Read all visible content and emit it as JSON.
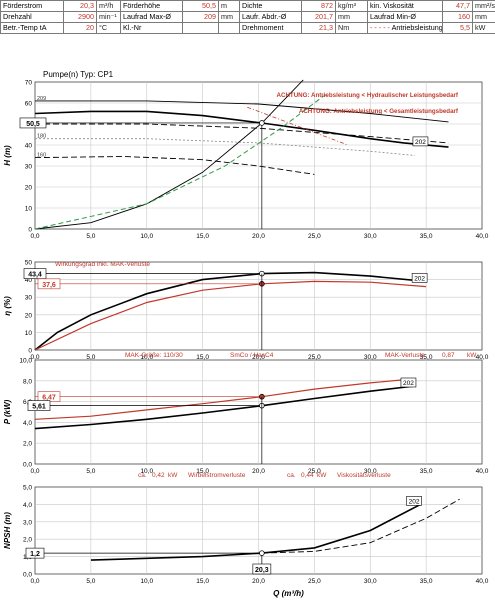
{
  "header": {
    "rows": [
      [
        {
          "label": "Förderstrom",
          "value": "20,3",
          "unit": "m³/h"
        },
        {
          "label": "Förderhöhe",
          "value": "50,5",
          "unit": "m"
        },
        {
          "label": "Dichte",
          "value": "872",
          "unit": "kg/m³"
        },
        {
          "label": "kin. Viskosität",
          "value": "47,7",
          "unit": "mm²/s"
        }
      ],
      [
        {
          "label": "Drehzahl",
          "value": "2900",
          "unit": "min⁻¹"
        },
        {
          "label": "Laufrad Max-Ø",
          "value": "209",
          "unit": "mm"
        },
        {
          "label": "Laufr. Abdr.-Ø",
          "value": "201,7",
          "unit": "mm"
        },
        {
          "label": "Laufrad Min-Ø",
          "value": "160",
          "unit": "mm"
        }
      ],
      [
        {
          "label": "Betr.-Temp tA",
          "value": "20",
          "unit": "°C"
        },
        {
          "label": "Kl.-Nr",
          "value": "",
          "unit": ""
        },
        {
          "label": "Drehmoment",
          "value": "21,3",
          "unit": "Nm"
        },
        {
          "label": "Antriebsleistung",
          "value": "5,5",
          "unit": "kW"
        }
      ]
    ],
    "legend_dashdot": "- - - - -"
  },
  "colors": {
    "red": "#c0392b",
    "green": "#2e9a48",
    "black": "#000000",
    "grid": "#c8c8c8",
    "gray": "#888888"
  },
  "chart_data": [
    {
      "type": "line",
      "title": "Pumpe(n) Typ:   CP1",
      "ylabel": "H (m)",
      "xlim": [
        0,
        40
      ],
      "ylim": [
        0,
        70
      ],
      "xticks": [
        "0,0",
        "5,0",
        "10,0",
        "15,0",
        "20,0",
        "25,0",
        "30,0",
        "35,0",
        "40,0"
      ],
      "yticks": [
        "0",
        "10",
        "20",
        "30",
        "40",
        "50",
        "60",
        "70"
      ],
      "warnings": [
        "ACHTUNG: Antriebsleistung < Hydraulischer Leistungsbedarf",
        "ACHTUNG: Antriebsleistung < Gesamtleistungsbedarf"
      ],
      "operating_point": {
        "x": 20.3,
        "y": 50.5,
        "label": "50,5"
      },
      "curve_labels": [
        "209",
        "202",
        "190",
        "180",
        "160"
      ],
      "series": [
        {
          "name": "209",
          "style": "thin-black",
          "x": [
            0,
            10,
            20,
            30,
            37
          ],
          "y": [
            61,
            61,
            59.5,
            55,
            51
          ]
        },
        {
          "name": "202",
          "style": "bold-black",
          "x": [
            0,
            5,
            10,
            15,
            20.3,
            25,
            30,
            33,
            37
          ],
          "y": [
            55,
            56,
            56,
            54,
            50.5,
            47,
            43,
            41,
            39
          ]
        },
        {
          "name": "190",
          "style": "dash-black",
          "x": [
            0,
            10,
            20,
            30,
            37
          ],
          "y": [
            50,
            50,
            48,
            44,
            41
          ]
        },
        {
          "name": "180",
          "style": "dot-gray",
          "x": [
            0,
            10,
            20,
            30,
            34
          ],
          "y": [
            43,
            43,
            41,
            37,
            35
          ]
        },
        {
          "name": "160",
          "style": "dash-black",
          "x": [
            0,
            8,
            15,
            20,
            25
          ],
          "y": [
            34,
            34.5,
            33,
            30,
            26
          ]
        },
        {
          "name": "system",
          "style": "thin-black",
          "x": [
            0,
            5,
            10,
            15,
            20.3,
            24
          ],
          "y": [
            0,
            3,
            12,
            27,
            50.5,
            71
          ]
        },
        {
          "name": "limit",
          "style": "dash-green",
          "x": [
            0,
            10,
            17,
            22,
            26
          ],
          "y": [
            0,
            12,
            30,
            48,
            64
          ]
        },
        {
          "name": "power-limit",
          "style": "dashdot-red",
          "x": [
            19,
            23,
            28
          ],
          "y": [
            58,
            50,
            40
          ]
        }
      ]
    },
    {
      "type": "line",
      "ylabel": "η (%)",
      "note": "Wirkungsgrad inkl. MAK-Verluste",
      "xlim": [
        0,
        40
      ],
      "ylim": [
        0,
        50
      ],
      "xticks": [
        "0,0",
        "5,0",
        "10,0",
        "15,0",
        "20,0",
        "25,0",
        "30,0",
        "35,0",
        "40,0"
      ],
      "yticks": [
        "0",
        "10",
        "20",
        "30",
        "40",
        "50"
      ],
      "markers": [
        {
          "x": 20.3,
          "y": 43.4,
          "label": "43,4"
        },
        {
          "x": 20.3,
          "y": 37.6,
          "label": "37,6"
        }
      ],
      "curve_labels": [
        "202"
      ],
      "series": [
        {
          "name": "202",
          "style": "bold-black",
          "x": [
            0,
            2,
            5,
            10,
            15,
            20.3,
            25,
            30,
            35
          ],
          "y": [
            0,
            10,
            20,
            32,
            40,
            43.4,
            44,
            42,
            39
          ]
        },
        {
          "name": "MAK",
          "style": "red",
          "x": [
            0,
            5,
            10,
            15,
            20.3,
            25,
            30,
            35
          ],
          "y": [
            0,
            15,
            27,
            34,
            37.6,
            39,
            38.5,
            36
          ]
        }
      ]
    },
    {
      "type": "line",
      "ylabel": "P (kW)",
      "note_left": "MAK-Größe: 110/30",
      "note_mid": "SmCo / HasC4",
      "note_right": "MAK-Verluste",
      "note_value": "0,87",
      "note_unit": "kW",
      "bottom_notes": [
        "ca.",
        "0,42",
        "kW",
        "Wirbelstromverluste",
        "ca.",
        "0,44",
        "kW",
        "Viskositätsverluste"
      ],
      "xlim": [
        0,
        40
      ],
      "ylim": [
        0,
        10
      ],
      "xticks": [
        "0,0",
        "5,0",
        "10,0",
        "15,0",
        "20,0",
        "25,0",
        "30,0",
        "35,0",
        "40,0"
      ],
      "yticks": [
        "0,0",
        "2,0",
        "4,0",
        "6,0",
        "8,0",
        "10,0"
      ],
      "markers": [
        {
          "x": 20.3,
          "y": 6.47,
          "label": "6,47"
        },
        {
          "x": 20.3,
          "y": 5.61,
          "label": "5,61"
        }
      ],
      "curve_labels": [
        "202"
      ],
      "series": [
        {
          "name": "202",
          "style": "bold-black",
          "x": [
            0,
            5,
            10,
            15,
            20.3,
            25,
            30,
            34
          ],
          "y": [
            3.4,
            3.8,
            4.3,
            4.9,
            5.61,
            6.3,
            7.0,
            7.5
          ]
        },
        {
          "name": "MAK",
          "style": "red",
          "x": [
            0,
            5,
            10,
            15,
            20.3,
            25,
            30,
            34
          ],
          "y": [
            4.3,
            4.6,
            5.2,
            5.8,
            6.47,
            7.2,
            7.8,
            8.2
          ]
        }
      ]
    },
    {
      "type": "line",
      "ylabel": "NPSH (m)",
      "xlabel": "Q (m³/h)",
      "xlim": [
        0,
        40
      ],
      "ylim": [
        0,
        5
      ],
      "xticks": [
        "0,0",
        "5,0",
        "10,0",
        "15,0",
        "20,0",
        "25,0",
        "30,0",
        "35,0",
        "40,0"
      ],
      "yticks": [
        "0,0",
        "1,0",
        "2,0",
        "3,0",
        "4,0",
        "5,0"
      ],
      "marker": {
        "x": 20.3,
        "y": 1.2,
        "label_y": "1,2",
        "label_x": "20,3"
      },
      "curve_labels": [
        "202"
      ],
      "series": [
        {
          "name": "202",
          "style": "bold-black",
          "x": [
            5,
            10,
            15,
            20.3,
            25,
            30,
            34.5
          ],
          "y": [
            0.8,
            0.9,
            1.0,
            1.2,
            1.5,
            2.5,
            4.0
          ]
        },
        {
          "name": "202-dash",
          "style": "dash-black",
          "x": [
            20.3,
            25,
            30,
            35,
            38
          ],
          "y": [
            1.2,
            1.3,
            1.8,
            3.2,
            4.3
          ]
        }
      ]
    }
  ]
}
